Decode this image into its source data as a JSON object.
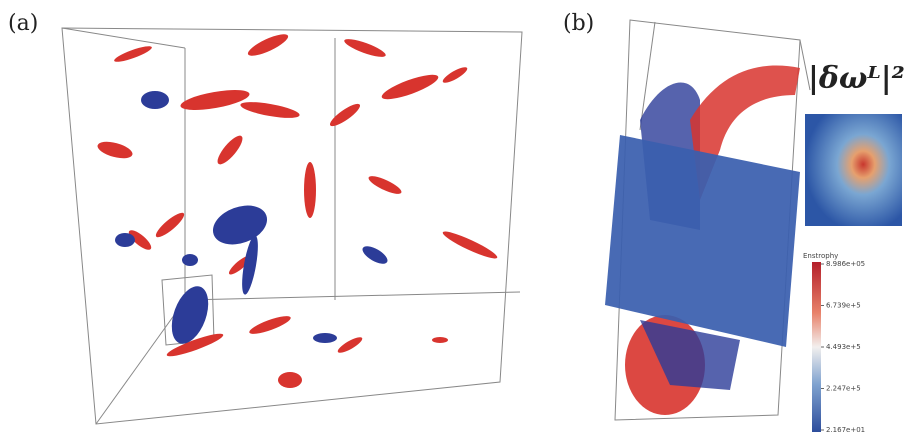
{
  "panel_a": {
    "label": "(a)"
  },
  "panel_b": {
    "label": "(b)",
    "formula": "|δωᴸ|²",
    "colorbar": {
      "title": "Enstrophy",
      "tick_labels": [
        "8.986e+05",
        "6.739e+5",
        "4.493e+5",
        "2.247e+5",
        "2.167e+01"
      ]
    }
  }
}
